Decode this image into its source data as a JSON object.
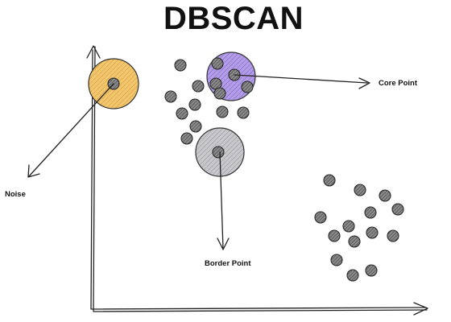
{
  "title": "DBSCAN",
  "labels": {
    "core": "Core Point",
    "noise": "Noise",
    "border": "Border Point"
  },
  "colors": {
    "noise_fill": "#F2C66E",
    "core_fill": "#B39DE6",
    "border_fill": "#C8C8CC",
    "point_fill": "#7A7A7A",
    "ink": "#222222"
  }
}
